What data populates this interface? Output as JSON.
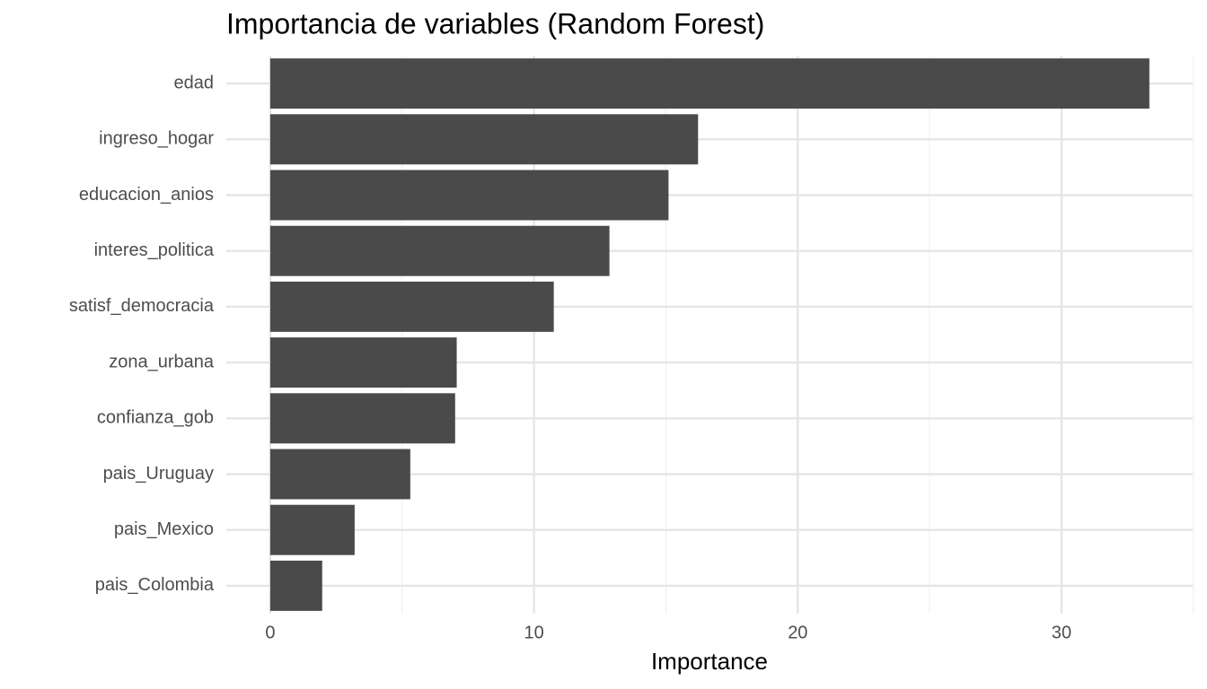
{
  "chart_data": {
    "type": "barh",
    "title": "Importancia de variables (Random Forest)",
    "x_label": "Importance",
    "categories": [
      "edad",
      "ingreso_hogar",
      "educacion_anios",
      "interes_politica",
      "satisf_democracia",
      "zona_urbana",
      "confianza_gob",
      "pais_Uruguay",
      "pais_Mexico",
      "pais_Colombia"
    ],
    "values": [
      33.33,
      16.22,
      15.1,
      12.86,
      10.75,
      7.07,
      7.01,
      5.31,
      3.2,
      1.97
    ],
    "color": "#4a4a4a",
    "xlim": [
      -1.665,
      34.97
    ],
    "xticks": [
      0,
      10,
      20,
      30
    ],
    "minor_xticks": [
      5,
      15,
      25,
      35
    ],
    "grid": true
  }
}
